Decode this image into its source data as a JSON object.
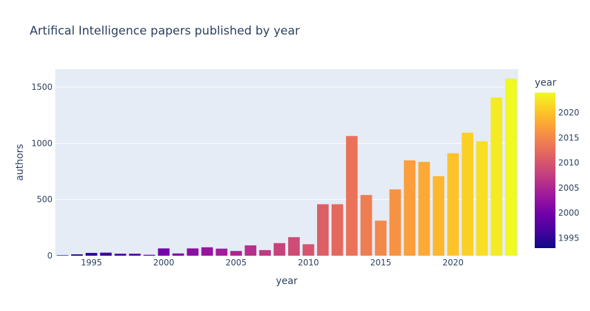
{
  "chart_data": {
    "type": "bar",
    "title": "Artifical Intelligence papers published by year",
    "xlabel": "year",
    "ylabel": "authors",
    "x": [
      1993,
      1994,
      1995,
      1996,
      1997,
      1998,
      1999,
      2000,
      2001,
      2002,
      2003,
      2004,
      2005,
      2006,
      2007,
      2008,
      2009,
      2010,
      2011,
      2012,
      2013,
      2014,
      2015,
      2016,
      2017,
      2018,
      2019,
      2020,
      2021,
      2022,
      2023,
      2024
    ],
    "values": [
      4,
      12,
      25,
      27,
      18,
      18,
      8,
      65,
      20,
      65,
      75,
      63,
      42,
      92,
      50,
      112,
      165,
      102,
      458,
      458,
      1065,
      540,
      312,
      590,
      848,
      835,
      708,
      912,
      1095,
      1018,
      1408,
      1575
    ],
    "xlim": [
      1992.5,
      2024.5
    ],
    "ylim": [
      0,
      1660
    ],
    "xticks": [
      1995,
      2000,
      2005,
      2010,
      2015,
      2020
    ],
    "yticks": [
      0,
      500,
      1000,
      1500
    ],
    "ytick_labels": [
      "0",
      "500",
      "1000",
      "1500"
    ],
    "grid": true,
    "plot_bgcolor": "#e5ecf6",
    "colorscale": "plasma",
    "colorbar": {
      "title": "year",
      "range": [
        1993,
        2024
      ],
      "ticks": [
        1995,
        2000,
        2005,
        2010,
        2015,
        2020
      ]
    }
  }
}
